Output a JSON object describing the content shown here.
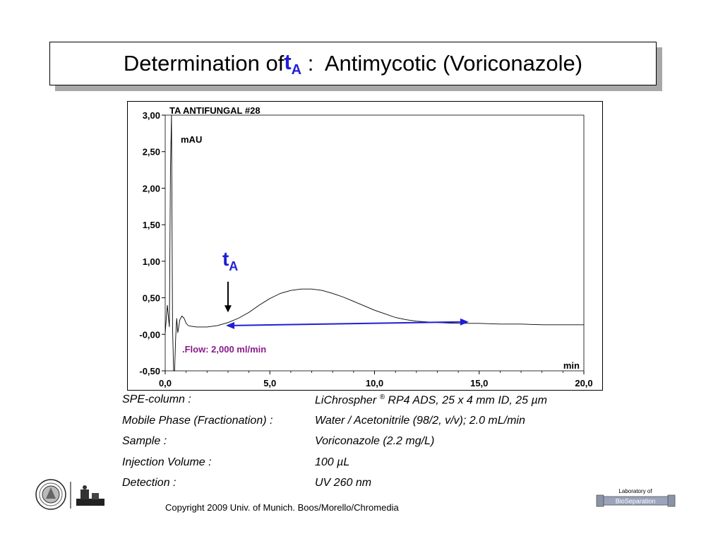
{
  "title": {
    "prefix": "Determination of ",
    "symbol_main": "t",
    "symbol_sub": "A",
    "suffix": " :  Antimycotic (Voriconazole)",
    "symbol_color": "#1f1fd6"
  },
  "chart_data": {
    "type": "line",
    "title": "TA  ANTIFUNGAL #28",
    "ylabel": "mAU",
    "xlabel": "min",
    "xlim": [
      0,
      20
    ],
    "ylim": [
      -0.5,
      3.0
    ],
    "x_ticks": [
      "0,0",
      "5,0",
      "10,0",
      "15,0",
      "20,0"
    ],
    "y_ticks": [
      "-0,50",
      "-0,00",
      "0,50",
      "1,00",
      "1,50",
      "2,00",
      "2,50",
      "3,00"
    ],
    "grid": false,
    "series": [
      {
        "x": [
          0.0,
          0.1,
          0.2,
          0.25,
          0.3,
          0.35,
          0.4,
          0.45,
          0.5,
          0.55,
          0.6,
          0.7,
          0.8,
          0.9,
          1.0,
          1.1,
          1.25,
          1.5,
          2.0,
          2.5,
          3.0,
          3.5,
          4.0,
          4.5,
          5.0,
          5.5,
          6.0,
          6.5,
          7.0,
          7.5,
          8.0,
          8.5,
          9.0,
          9.5,
          10.0,
          10.5,
          11.0,
          11.5,
          12.0,
          12.5,
          13.0,
          13.5,
          14.0,
          15.0,
          16.0,
          17.0,
          18.0,
          19.0,
          20.0
        ],
        "y": [
          0.02,
          0.4,
          0.1,
          2.2,
          3.0,
          0.1,
          -0.5,
          -0.5,
          -0.05,
          0.22,
          0.02,
          0.2,
          0.25,
          0.22,
          0.15,
          0.12,
          0.11,
          0.1,
          0.1,
          0.12,
          0.16,
          0.22,
          0.3,
          0.4,
          0.49,
          0.56,
          0.6,
          0.62,
          0.62,
          0.6,
          0.56,
          0.51,
          0.45,
          0.39,
          0.33,
          0.28,
          0.23,
          0.2,
          0.18,
          0.17,
          0.16,
          0.155,
          0.15,
          0.15,
          0.14,
          0.14,
          0.13,
          0.13,
          0.13
        ]
      }
    ],
    "annotations": {
      "marker_label_main": "t",
      "marker_label_sub": "A",
      "marker_x": 3.0,
      "range_start": 2.9,
      "range_end": 14.5,
      "range_y": 0.15,
      "flow_text": ".Flow: 2,000 ml/min",
      "flow_color": "#8b1a8b",
      "arrow_color": "#1f1fd6"
    }
  },
  "specs": [
    {
      "label": "SPE-column :",
      "value": "LiChrospher ",
      "sup": "®",
      "value2": " RP4 ADS,  25 x 4 mm ID, 25 µm"
    },
    {
      "label": "Mobile Phase (Fractionation) :",
      "value": "Water  /  Acetonitrile  (98/2, v/v);  2.0 mL/min"
    },
    {
      "label": "Sample :",
      "value": "Voriconazole  (2.2 mg/L)"
    },
    {
      "label": "Injection Volume :",
      "value": "100 µL"
    },
    {
      "label": "Detection :",
      "value": "UV 260 nm"
    }
  ],
  "copyright": "Copyright 2009 Univ. of Munich. Boos/Morello/Chromedia",
  "logo_right": {
    "line1": "Laboratory of",
    "line2": "BioSeparation"
  }
}
